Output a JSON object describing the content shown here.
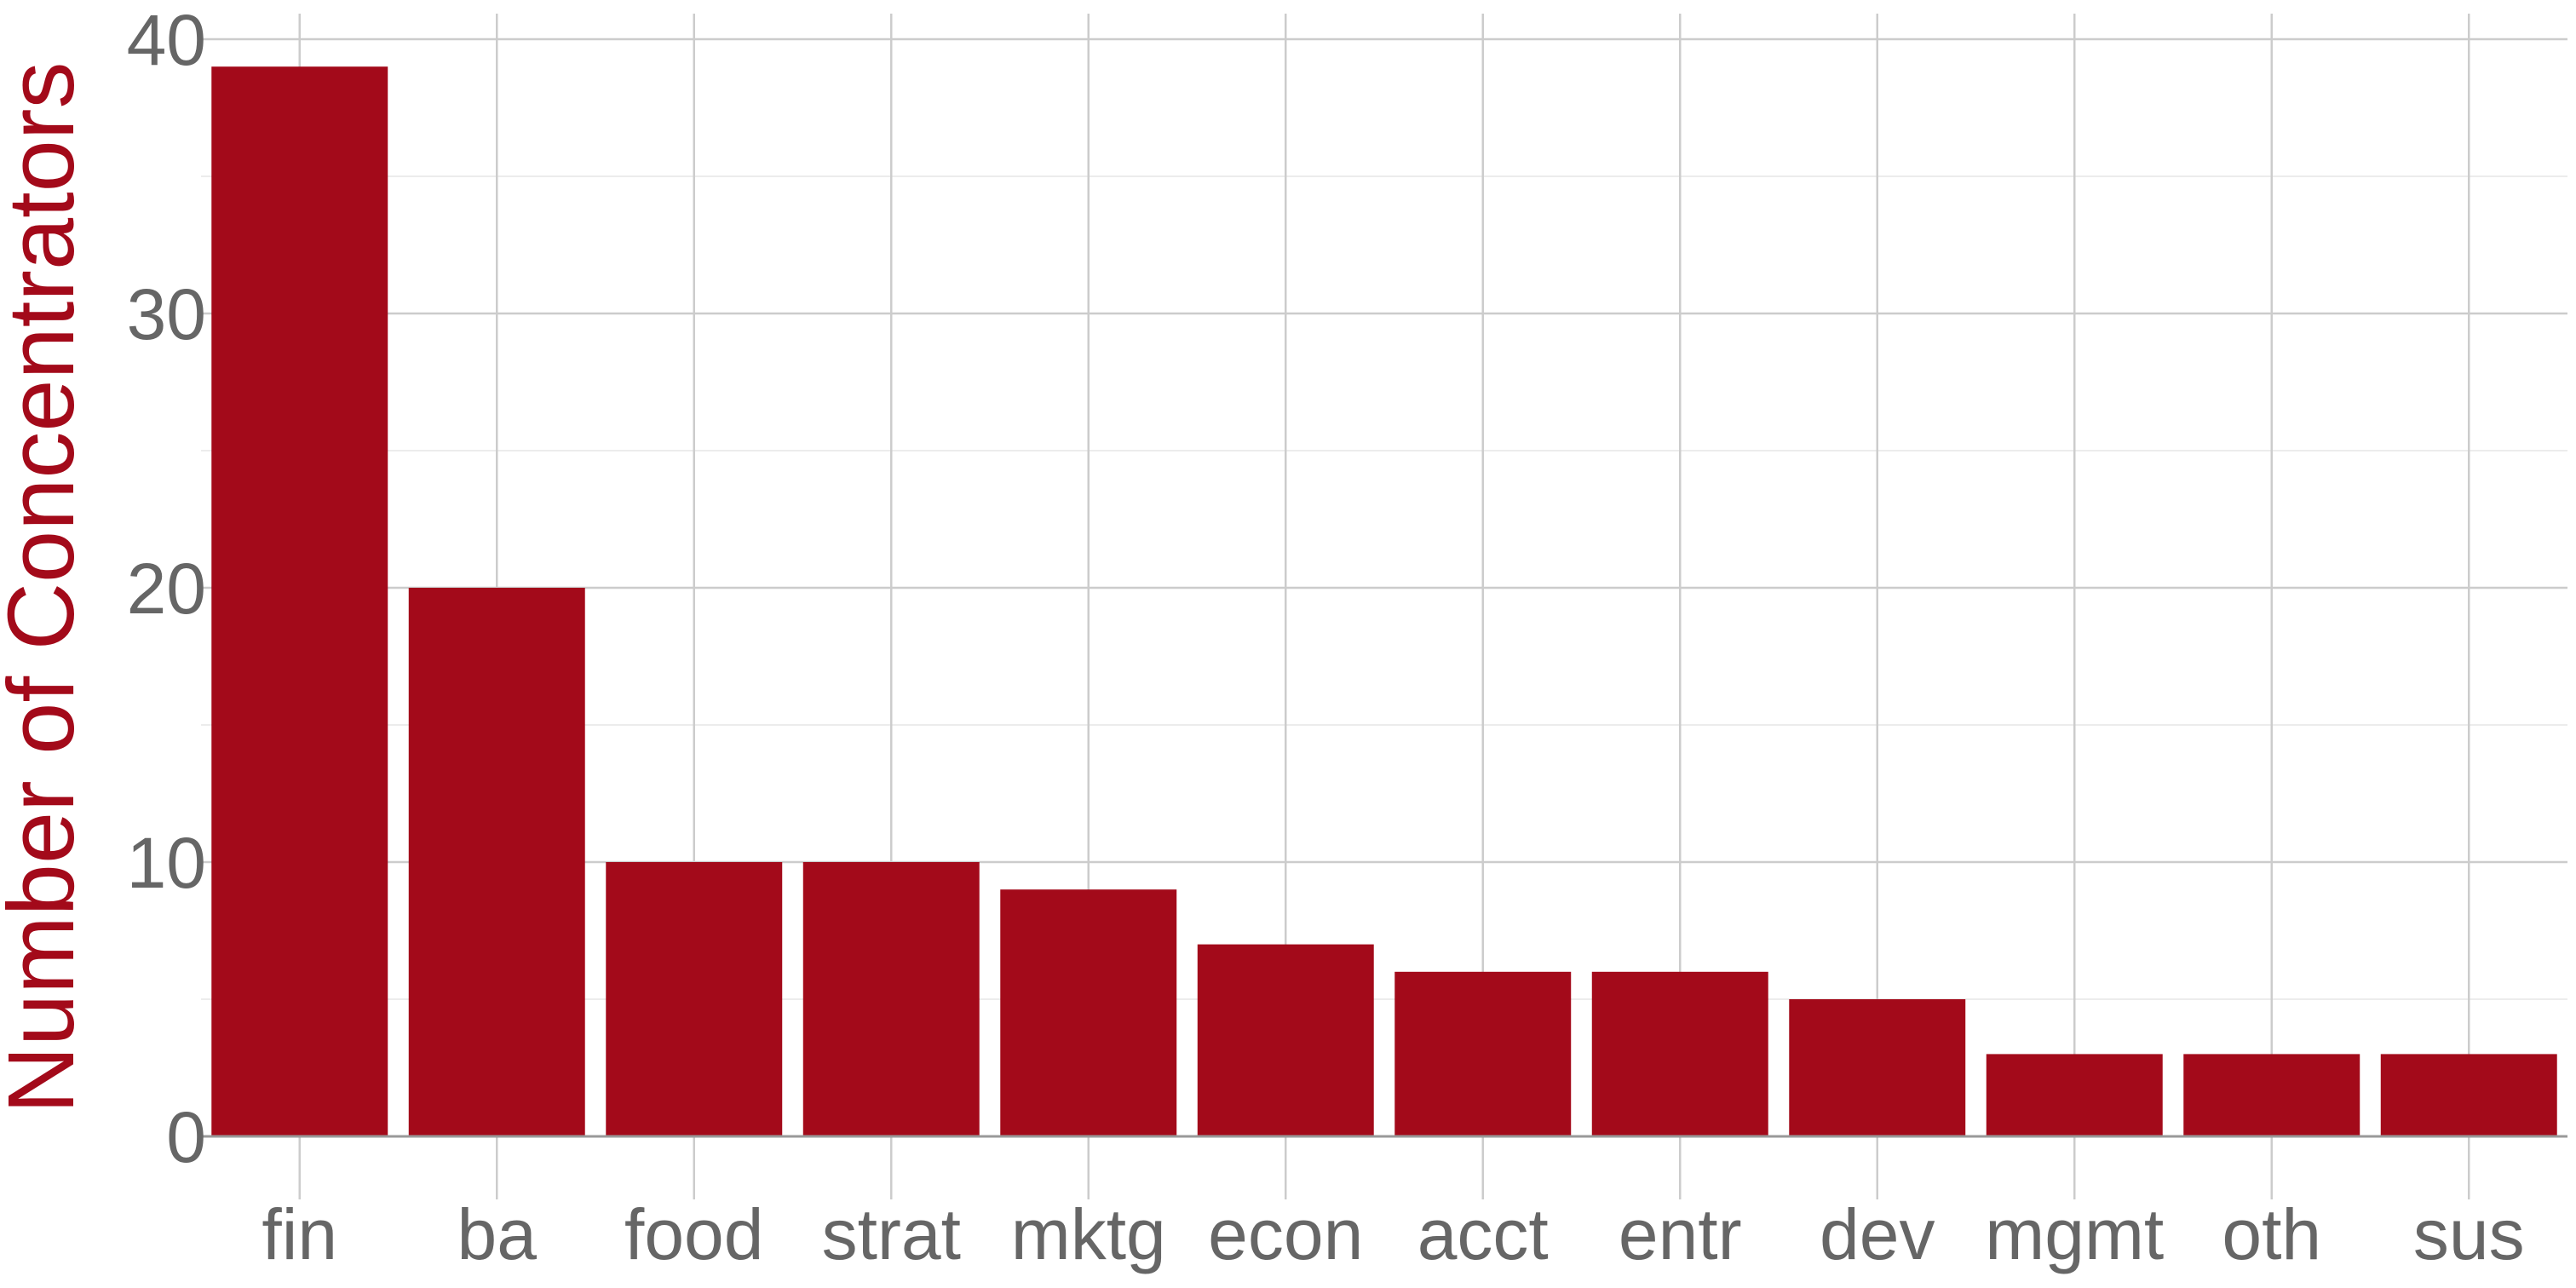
{
  "chart_data": {
    "type": "bar",
    "categories": [
      "fin",
      "ba",
      "food",
      "strat",
      "mktg",
      "econ",
      "acct",
      "entr",
      "dev",
      "mgmt",
      "oth",
      "sus"
    ],
    "values": [
      39,
      20,
      10,
      10,
      9,
      7,
      6,
      6,
      5,
      3,
      3,
      3
    ],
    "title": "",
    "xlabel": "",
    "ylabel": "Number of Concentrators",
    "ylim": [
      0,
      40
    ],
    "yticks": [
      0,
      10,
      20,
      30,
      40
    ],
    "grid": true,
    "legend": "none",
    "colors": {
      "bar": "#a30a1a",
      "ylabel": "#a30a1a",
      "tick_label": "#666666",
      "grid_major": "#cccccc",
      "grid_minor": "#ececec",
      "axis": "#999999"
    }
  }
}
